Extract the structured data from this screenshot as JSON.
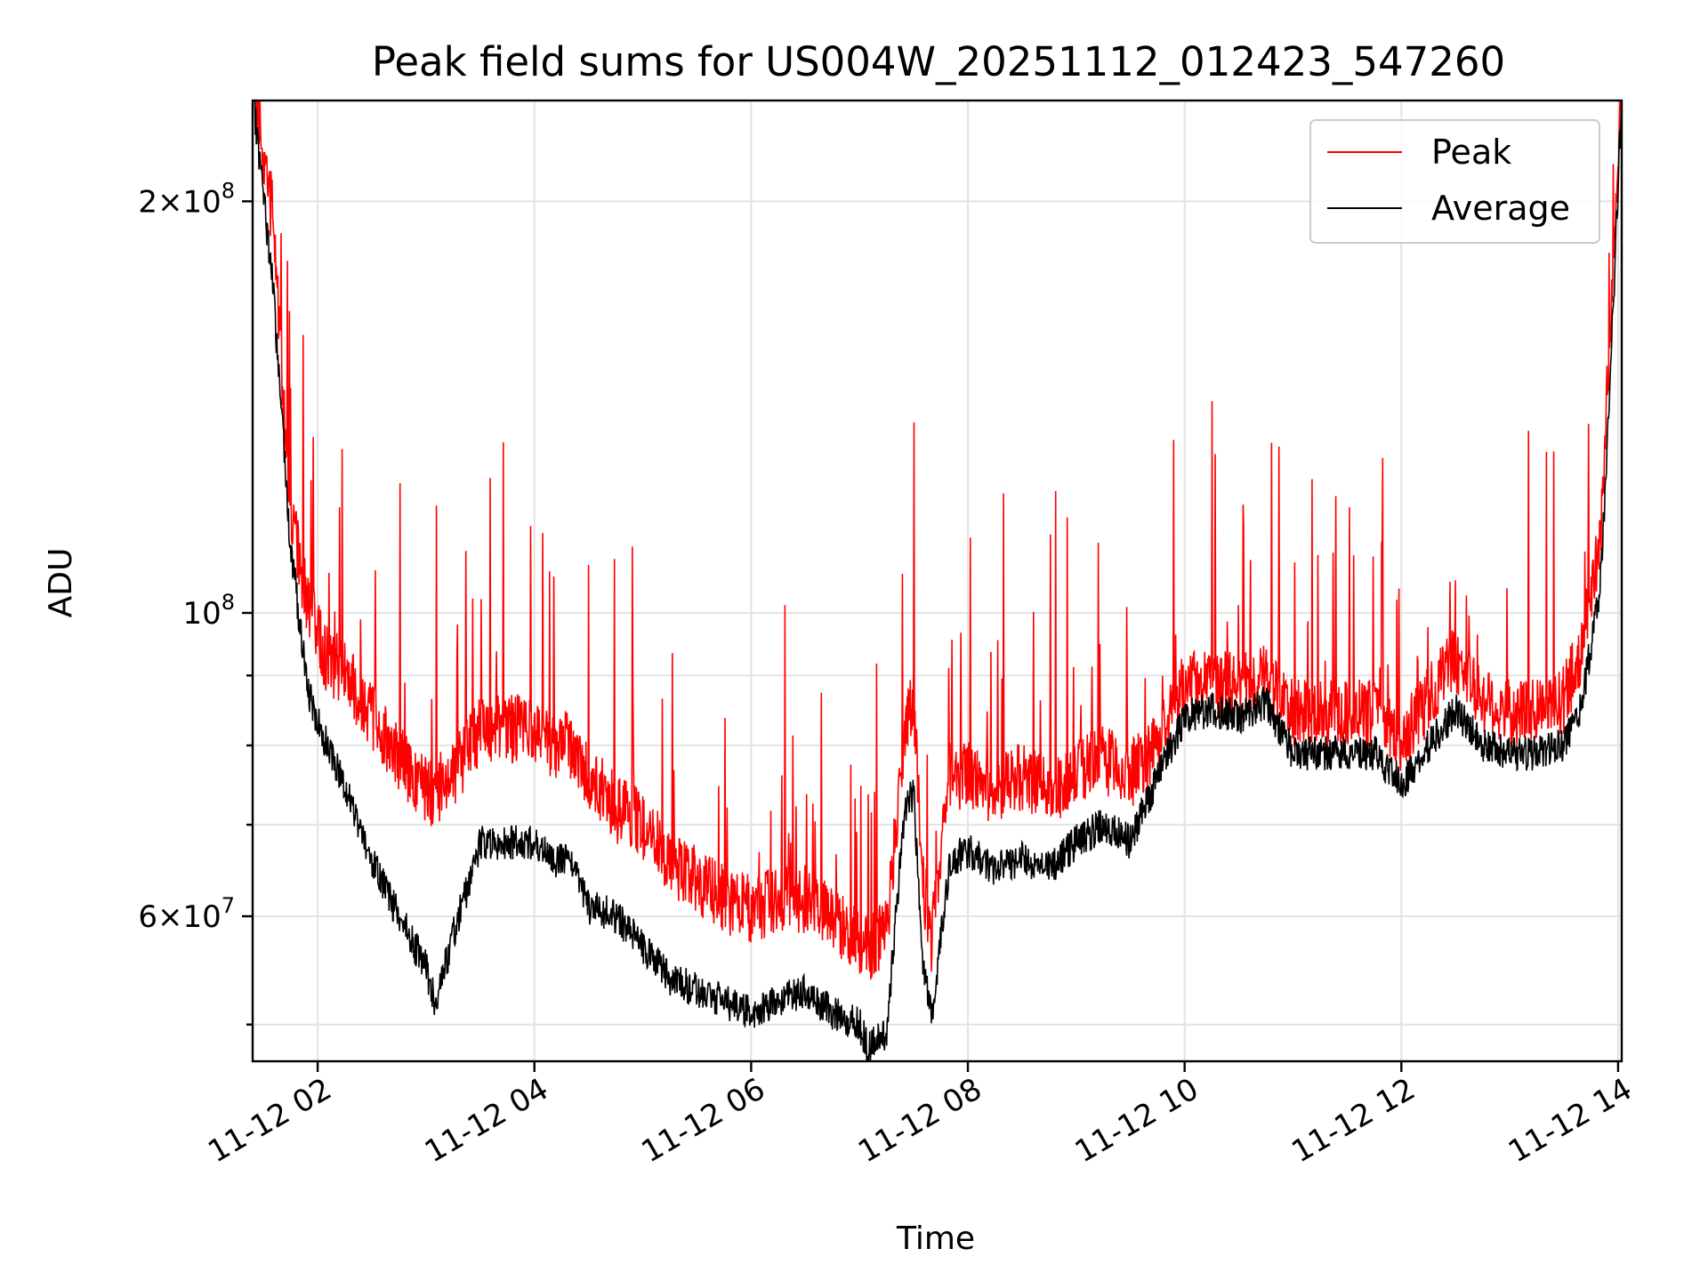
{
  "chart_data": {
    "type": "line",
    "title": "Peak field sums for US004W_20251112_012423_547260",
    "xlabel": "Time",
    "ylabel": "ADU",
    "yscale": "log",
    "ylim": [
      47000000,
      237000000
    ],
    "xlim": [
      "11-12 01:24",
      "11-12 14:02"
    ],
    "grid": true,
    "legend_position": "top-right",
    "x_ticks": [
      "11-12 02",
      "11-12 04",
      "11-12 06",
      "11-12 08",
      "11-12 10",
      "11-12 12",
      "11-12 14"
    ],
    "y_ticks": [
      {
        "value": 200000000,
        "mantissa": "2",
        "exponent": "8"
      },
      {
        "value": 100000000,
        "mantissa": "",
        "exponent": "8"
      },
      {
        "value": 60000000,
        "mantissa": "6",
        "exponent": "7"
      }
    ],
    "x": [
      "11-12 01:24",
      "11-12 01:35",
      "11-12 01:45",
      "11-12 01:55",
      "11-12 02:05",
      "11-12 02:15",
      "11-12 02:30",
      "11-12 02:45",
      "11-12 03:00",
      "11-12 03:05",
      "11-12 03:15",
      "11-12 03:30",
      "11-12 03:45",
      "11-12 04:00",
      "11-12 04:10",
      "11-12 04:20",
      "11-12 04:30",
      "11-12 04:45",
      "11-12 05:00",
      "11-12 05:15",
      "11-12 05:30",
      "11-12 05:45",
      "11-12 06:00",
      "11-12 06:15",
      "11-12 06:30",
      "11-12 06:45",
      "11-12 07:00",
      "11-12 07:05",
      "11-12 07:15",
      "11-12 07:25",
      "11-12 07:30",
      "11-12 07:35",
      "11-12 07:40",
      "11-12 07:45",
      "11-12 07:50",
      "11-12 08:00",
      "11-12 08:15",
      "11-12 08:30",
      "11-12 08:45",
      "11-12 09:00",
      "11-12 09:15",
      "11-12 09:30",
      "11-12 09:45",
      "11-12 10:00",
      "11-12 10:15",
      "11-12 10:30",
      "11-12 10:45",
      "11-12 11:00",
      "11-12 11:15",
      "11-12 11:30",
      "11-12 11:45",
      "11-12 12:00",
      "11-12 12:15",
      "11-12 12:30",
      "11-12 12:45",
      "11-12 13:00",
      "11-12 13:15",
      "11-12 13:30",
      "11-12 13:40",
      "11-12 13:50",
      "11-12 13:55",
      "11-12 14:02"
    ],
    "series": [
      {
        "name": "Peak",
        "color": "#ff0000",
        "values": [
          240000000,
          190000000,
          115000000,
          98000000,
          90000000,
          88000000,
          82000000,
          76000000,
          72000000,
          72000000,
          74000000,
          80000000,
          80000000,
          80000000,
          78000000,
          78000000,
          74000000,
          70000000,
          68000000,
          64000000,
          62000000,
          60000000,
          59000000,
          60000000,
          60000000,
          58000000,
          56000000,
          55000000,
          57000000,
          80000000,
          84000000,
          62000000,
          56000000,
          66000000,
          74000000,
          74000000,
          72000000,
          74000000,
          72000000,
          74000000,
          76000000,
          74000000,
          78000000,
          86000000,
          86000000,
          86000000,
          87000000,
          82000000,
          82000000,
          82000000,
          82000000,
          78000000,
          84000000,
          90000000,
          84000000,
          82000000,
          82000000,
          84000000,
          92000000,
          110000000,
          150000000,
          240000000
        ]
      },
      {
        "name": "Average",
        "color": "#000000",
        "values": [
          240000000,
          175000000,
          112000000,
          87000000,
          80000000,
          75000000,
          66000000,
          60000000,
          55000000,
          52000000,
          58000000,
          68000000,
          68000000,
          68000000,
          66000000,
          66000000,
          61000000,
          60000000,
          57000000,
          54000000,
          53000000,
          52000000,
          51000000,
          52000000,
          53000000,
          51000000,
          50000000,
          48000000,
          49500000,
          72000000,
          74000000,
          55000000,
          51000000,
          58000000,
          66000000,
          67000000,
          65000000,
          66000000,
          65000000,
          68000000,
          70000000,
          68000000,
          76000000,
          84000000,
          85000000,
          84000000,
          86000000,
          79000000,
          79000000,
          79000000,
          79000000,
          75000000,
          80000000,
          85000000,
          80000000,
          79000000,
          79000000,
          80000000,
          86000000,
          104000000,
          140000000,
          240000000
        ]
      }
    ],
    "annotations": "High-frequency noisy spikes on Peak series up to ~1.35e8"
  }
}
